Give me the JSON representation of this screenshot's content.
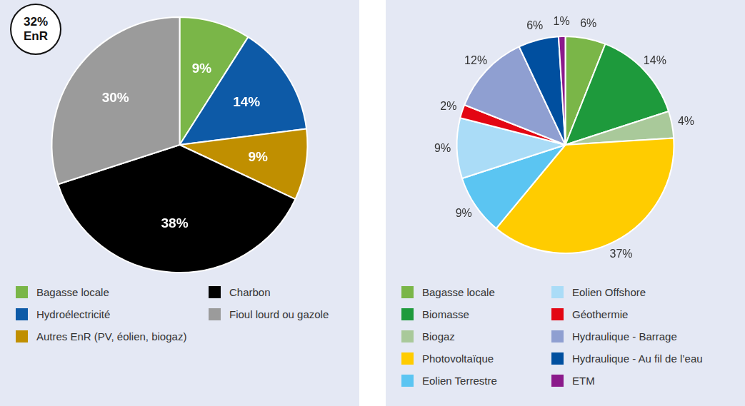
{
  "chart_data": [
    {
      "type": "pie",
      "annotation": "32% EnR",
      "categories": [
        "Bagasse locale",
        "Hydroélectricité",
        "Autres EnR (PV, éolien, biogaz)",
        "Charbon",
        "Fioul lourd ou gazole"
      ],
      "values": [
        9,
        14,
        9,
        38,
        30
      ],
      "value_labels": [
        "9%",
        "14%",
        "9%",
        "38%",
        "30%"
      ],
      "colors": [
        "#7ab648",
        "#0d5aa7",
        "#c08f00",
        "#000000",
        "#9b9b9b"
      ],
      "data_labels": true,
      "legend": "bottom"
    },
    {
      "type": "pie",
      "categories": [
        "Bagasse locale",
        "Biomasse",
        "Biogaz",
        "Photovoltaïque",
        "Eolien Terrestre",
        "Eolien Offshore",
        "Géothermie",
        "Hydraulique -  Barrage",
        "Hydraulique - Au fil de l’eau",
        "ETM"
      ],
      "values": [
        6,
        14,
        4,
        37,
        9,
        9,
        2,
        12,
        6,
        1
      ],
      "value_labels": [
        "6%",
        "14%",
        "4%",
        "37%",
        "9%",
        "9%",
        "2%",
        "12%",
        "6%",
        "1%"
      ],
      "colors": [
        "#7ab648",
        "#1e9a3c",
        "#a9c99a",
        "#ffcc00",
        "#5bc5f2",
        "#aadcf7",
        "#e30613",
        "#8f9fd1",
        "#004f9f",
        "#8b1a8b"
      ],
      "data_labels": true,
      "legend": "bottom"
    }
  ]
}
